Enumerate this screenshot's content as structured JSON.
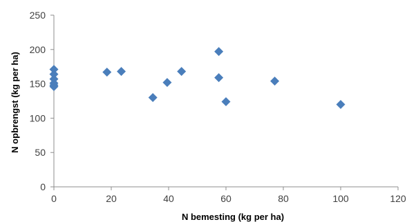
{
  "chart_data": {
    "type": "scatter",
    "title": "",
    "xlabel": "N bemesting (kg per ha)",
    "ylabel": "N opbrengst (kg per ha)",
    "xlim": [
      0,
      120
    ],
    "ylim": [
      0,
      250
    ],
    "xticks": [
      0,
      20,
      40,
      60,
      80,
      100,
      120
    ],
    "yticks": [
      0,
      50,
      100,
      150,
      200,
      250
    ],
    "grid": false,
    "legend": "none",
    "marker": "diamond",
    "marker_color": "#4a7ebb",
    "series": [
      {
        "x": [
          0,
          0,
          0,
          0,
          0,
          0,
          18.5,
          23.5,
          34.5,
          39.5,
          44.5,
          57.5,
          57.5,
          60,
          77,
          100
        ],
        "y": [
          171,
          164,
          157,
          151,
          146,
          148,
          167,
          168,
          130,
          152,
          168,
          197,
          159,
          124,
          154,
          120
        ]
      }
    ]
  }
}
